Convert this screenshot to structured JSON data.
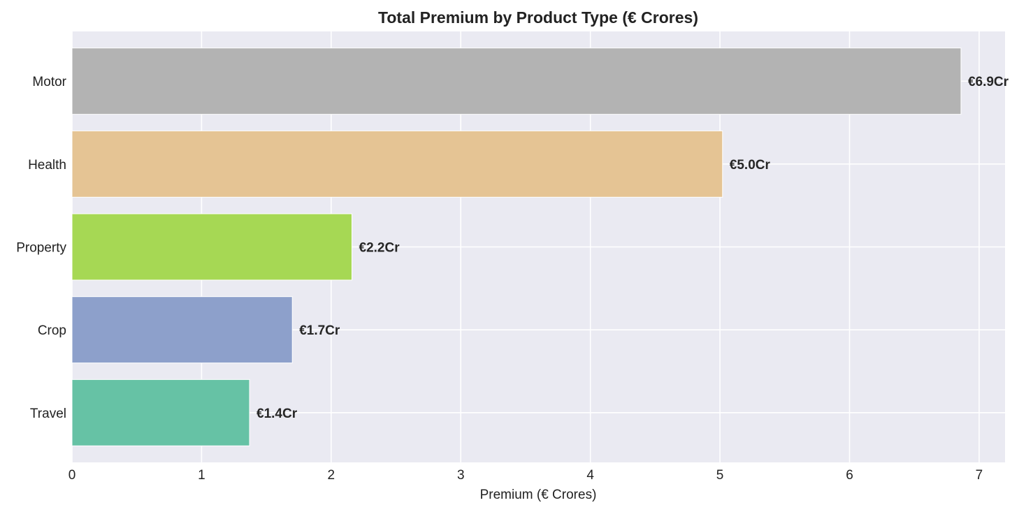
{
  "chart_data": {
    "type": "bar",
    "orientation": "horizontal",
    "title": "Total Premium by Product Type (€ Crores)",
    "xlabel": "Premium (€ Crores)",
    "ylabel": "",
    "categories": [
      "Motor",
      "Health",
      "Property",
      "Crop",
      "Travel"
    ],
    "values": [
      6.86,
      5.02,
      2.16,
      1.7,
      1.37
    ],
    "data_labels": [
      "€6.9Cr",
      "€5.0Cr",
      "€2.2Cr",
      "€1.7Cr",
      "€1.4Cr"
    ],
    "colors": [
      "#b3b3b3",
      "#e5c494",
      "#a6d854",
      "#8da0cb",
      "#66c2a5"
    ],
    "xlim": [
      0,
      7.2
    ],
    "xticks": [
      0,
      1,
      2,
      3,
      4,
      5,
      6,
      7
    ],
    "grid": true,
    "legend": "none",
    "background": "#eaeaf2"
  }
}
